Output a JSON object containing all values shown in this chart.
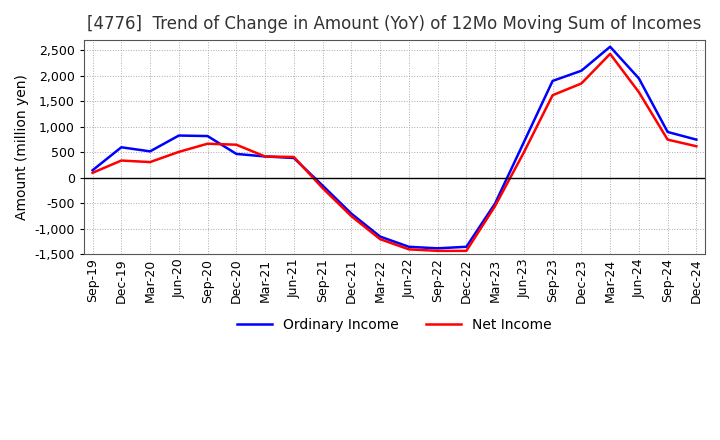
{
  "title": "[4776]  Trend of Change in Amount (YoY) of 12Mo Moving Sum of Incomes",
  "ylabel": "Amount (million yen)",
  "ylim": [
    -1500,
    2700
  ],
  "yticks": [
    -1500,
    -1000,
    -500,
    0,
    500,
    1000,
    1500,
    2000,
    2500
  ],
  "x_labels": [
    "Sep-19",
    "Dec-19",
    "Mar-20",
    "Jun-20",
    "Sep-20",
    "Dec-20",
    "Mar-21",
    "Jun-21",
    "Sep-21",
    "Dec-21",
    "Mar-22",
    "Jun-22",
    "Sep-22",
    "Dec-22",
    "Mar-23",
    "Jun-23",
    "Sep-23",
    "Dec-23",
    "Mar-24",
    "Jun-24",
    "Sep-24",
    "Dec-24"
  ],
  "ordinary_income": [
    150,
    600,
    520,
    830,
    820,
    470,
    420,
    390,
    -150,
    -700,
    -1150,
    -1350,
    -1380,
    -1350,
    -500,
    700,
    1900,
    2100,
    2570,
    1950,
    900,
    750
  ],
  "net_income": [
    100,
    340,
    310,
    510,
    670,
    650,
    420,
    410,
    -200,
    -750,
    -1200,
    -1400,
    -1430,
    -1430,
    -550,
    500,
    1620,
    1850,
    2430,
    1680,
    750,
    620
  ],
  "ordinary_color": "#0000ff",
  "net_color": "#ff0000",
  "line_width": 1.8,
  "grid_color": "#aaaaaa",
  "grid_linestyle": "dotted",
  "title_color": "#333333",
  "title_fontsize": 12,
  "label_fontsize": 10,
  "tick_fontsize": 9,
  "legend_fontsize": 10,
  "bg_color": "#ffffff",
  "plot_bg_color": "#ffffff"
}
